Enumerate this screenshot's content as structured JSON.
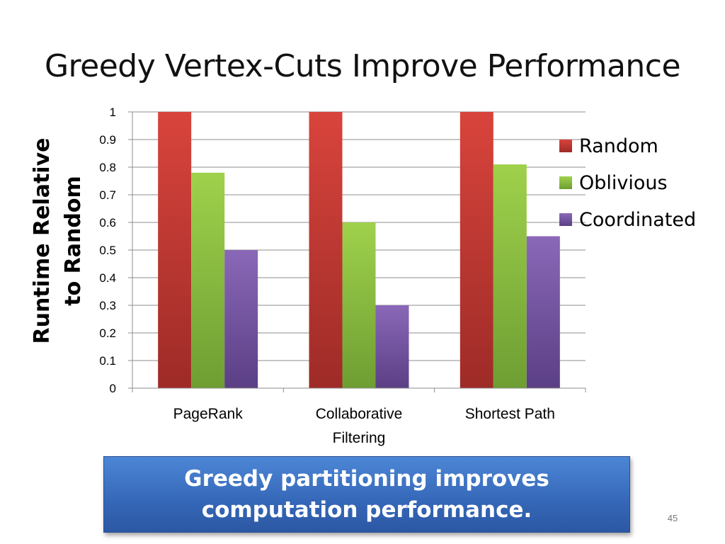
{
  "slide": {
    "title": "Greedy Vertex-Cuts Improve Performance",
    "callout_lines": [
      "Greedy partitioning improves",
      "computation performance."
    ],
    "page_number": "45"
  },
  "chart_data": {
    "type": "bar",
    "title": "",
    "xlabel": "",
    "ylabel_lines": [
      "Runtime Relative",
      "to Random"
    ],
    "categories": [
      [
        "PageRank"
      ],
      [
        "Collaborative",
        "Filtering"
      ],
      [
        "Shortest Path"
      ]
    ],
    "series": [
      {
        "name": "Random",
        "values": [
          1,
          1,
          1
        ],
        "color": "#c0392b"
      },
      {
        "name": "Oblivious",
        "values": [
          0.78,
          0.6,
          0.81
        ],
        "color": "#8cc63f"
      },
      {
        "name": "Coordinated",
        "values": [
          0.5,
          0.3,
          0.55
        ],
        "color": "#7a5aa8"
      }
    ],
    "ylim": [
      0,
      1
    ],
    "yticks": [
      "0",
      "0.1",
      "0.2",
      "0.3",
      "0.4",
      "0.5",
      "0.6",
      "0.7",
      "0.8",
      "0.9",
      "1"
    ],
    "grid": true,
    "legend": "right"
  }
}
